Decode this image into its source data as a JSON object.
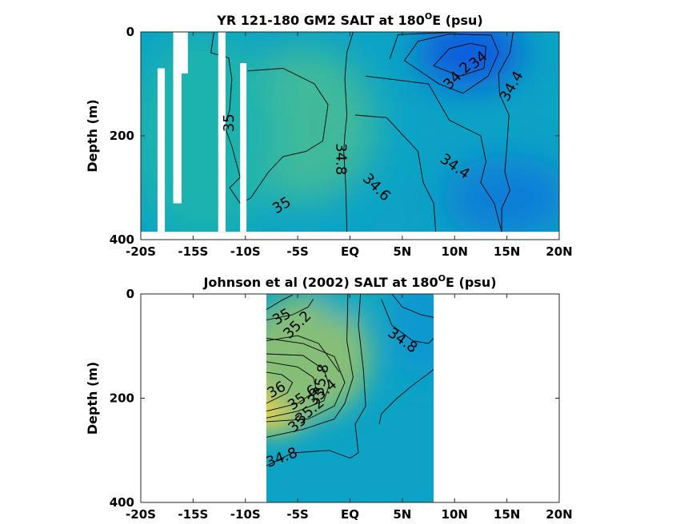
{
  "chart_data": [
    {
      "type": "contour",
      "title": "YR 121-180 GM2 SALT at 180",
      "title_sup": "O",
      "title_tail": "E (psu)",
      "ylabel": "Depth (m)",
      "xlim": [
        -20,
        20
      ],
      "ylim": [
        400,
        0
      ],
      "x_ticks": [
        -20,
        -15,
        -10,
        -5,
        0,
        5,
        10,
        15,
        20
      ],
      "x_tick_labels": [
        "-20S",
        "-15S",
        "-10S",
        "-5S",
        "EQ",
        "5N",
        "10N",
        "15N",
        "20N"
      ],
      "y_ticks": [
        0,
        200,
        400
      ],
      "y_tick_labels": [
        "0",
        "200",
        "400"
      ],
      "data_extent": {
        "x": [
          -20,
          20
        ],
        "depth": [
          0,
          385
        ]
      },
      "masked_columns": [
        {
          "x": [
            -18.4,
            -17.7
          ],
          "depth": [
            70,
            385
          ]
        },
        {
          "x": [
            -16.9,
            -16.1
          ],
          "depth": [
            0,
            330
          ]
        },
        {
          "x": [
            -16.1,
            -15.5
          ],
          "depth": [
            0,
            80
          ]
        },
        {
          "x": [
            -12.6,
            -11.9
          ],
          "depth": [
            0,
            385
          ]
        },
        {
          "x": [
            -10.5,
            -9.9
          ],
          "depth": [
            60,
            385
          ]
        }
      ],
      "salinity_blobs": [
        {
          "x": -4.5,
          "depth": 180,
          "value": 35.15,
          "rx": 7,
          "ry": 150
        },
        {
          "x": -14,
          "depth": 200,
          "value": 35.0,
          "rx": 7,
          "ry": 200
        },
        {
          "x": 11.5,
          "depth": 40,
          "value": 34.0,
          "rx": 5,
          "ry": 70
        },
        {
          "x": 15,
          "depth": 320,
          "value": 34.35,
          "rx": 6,
          "ry": 80
        }
      ],
      "contours": [
        {
          "level": "34",
          "points": [
            [
              8,
              65
            ],
            [
              9.5,
              32
            ],
            [
              11.5,
              22
            ],
            [
              13,
              28
            ],
            [
              12.8,
              70
            ],
            [
              10.5,
              85
            ],
            [
              8,
              65
            ]
          ]
        },
        {
          "level": "34.2",
          "points": [
            [
              5.2,
              55
            ],
            [
              6.5,
              18
            ],
            [
              9.5,
              4
            ],
            [
              13.5,
              6
            ],
            [
              14.2,
              40
            ],
            [
              13.2,
              85
            ],
            [
              10.8,
              118
            ],
            [
              8.5,
              100
            ],
            [
              5.2,
              55
            ]
          ]
        },
        {
          "level": "34.4",
          "points": [
            [
              3.8,
              52
            ],
            [
              4.6,
              5
            ],
            [
              10.5,
              0
            ]
          ]
        },
        {
          "level": "34.4",
          "points": [
            [
              15.6,
              0
            ],
            [
              15.3,
              40
            ],
            [
              14.2,
              80
            ],
            [
              14.3,
              120
            ],
            [
              15.2,
              160
            ],
            [
              15,
              220
            ],
            [
              14.8,
              270
            ],
            [
              15.3,
              305
            ],
            [
              14.5,
              340
            ],
            [
              14.5,
              385
            ]
          ]
        },
        {
          "level": "34.4",
          "points": [
            [
              1.5,
              85
            ],
            [
              7.5,
              100
            ],
            [
              9.5,
              170
            ],
            [
              12.5,
              200
            ],
            [
              13,
              250
            ],
            [
              12.5,
              290
            ],
            [
              13.8,
              330
            ],
            [
              14.5,
              385
            ]
          ]
        },
        {
          "level": "34.6",
          "points": [
            [
              0.5,
              160
            ],
            [
              3.5,
              165
            ],
            [
              6.5,
              230
            ],
            [
              7,
              290
            ],
            [
              8,
              330
            ],
            [
              8.2,
              385
            ]
          ]
        },
        {
          "level": "34.8",
          "points": [
            [
              0.3,
              0
            ],
            [
              -0.3,
              40
            ],
            [
              -0.5,
              90
            ],
            [
              -0.3,
              160
            ],
            [
              -0.5,
              200
            ],
            [
              -0.6,
              230
            ],
            [
              -0.4,
              300
            ],
            [
              -0.3,
              385
            ]
          ]
        },
        {
          "level": "35",
          "points": [
            [
              -13,
              0
            ],
            [
              -13.3,
              40
            ],
            [
              -11.6,
              50
            ],
            [
              -11.3,
              90
            ],
            [
              -11.5,
              150
            ],
            [
              -12,
              180
            ],
            [
              -11.3,
              220
            ],
            [
              -10.5,
              280
            ],
            [
              -11.5,
              300
            ],
            [
              -10.5,
              330
            ],
            [
              -9.5,
              320
            ],
            [
              -7.8,
              270
            ],
            [
              -6.4,
              240
            ],
            [
              -4.2,
              230
            ],
            [
              -2.6,
              210
            ],
            [
              -2.1,
              140
            ],
            [
              -3.4,
              100
            ],
            [
              -6.4,
              70
            ],
            [
              -9.8,
              75
            ]
          ]
        }
      ],
      "contour_labels": [
        {
          "text": "34",
          "x": 12.3,
          "depth": 55,
          "angle": -40
        },
        {
          "text": "34.2",
          "x": 10.3,
          "depth": 85,
          "angle": -45
        },
        {
          "text": "34.4",
          "x": 15.5,
          "depth": 105,
          "angle": -60
        },
        {
          "text": "34.4",
          "x": 10,
          "depth": 260,
          "angle": 35
        },
        {
          "text": "34.6",
          "x": 2.5,
          "depth": 300,
          "angle": 45
        },
        {
          "text": "34.8",
          "x": -0.9,
          "depth": 245,
          "angle": 90
        },
        {
          "text": "35",
          "x": -11.5,
          "depth": 175,
          "angle": -90
        },
        {
          "text": "35",
          "x": -6.5,
          "depth": 335,
          "angle": -30
        }
      ]
    },
    {
      "type": "contour",
      "title": "Johnson et al (2002) SALT at 180",
      "title_sup": "O",
      "title_tail": "E (psu)",
      "ylabel": "Depth (m)",
      "xlim": [
        -20,
        20
      ],
      "ylim": [
        400,
        0
      ],
      "x_ticks": [
        -20,
        -15,
        -10,
        -5,
        0,
        5,
        10,
        15,
        20
      ],
      "x_tick_labels": [
        "-20S",
        "-15S",
        "-10S",
        "-5S",
        "EQ",
        "5N",
        "10N",
        "15N",
        "20N"
      ],
      "y_ticks": [
        0,
        200,
        400
      ],
      "y_tick_labels": [
        "0",
        "200",
        "400"
      ],
      "data_extent": {
        "x": [
          -8,
          8
        ],
        "depth": [
          0,
          400
        ]
      },
      "masked_columns": [],
      "salinity_blobs": [
        {
          "x": -7.5,
          "depth": 175,
          "value": 36.1,
          "rx": 5,
          "ry": 90
        },
        {
          "x": -4,
          "depth": 120,
          "value": 35.45,
          "rx": 6,
          "ry": 120
        },
        {
          "x": 0,
          "depth": 10,
          "value": 34.85,
          "rx": 3,
          "ry": 40
        },
        {
          "x": 7,
          "depth": 60,
          "value": 34.6,
          "rx": 3,
          "ry": 100
        }
      ],
      "contours": [
        {
          "level": "35",
          "points": [
            [
              -8,
              30
            ],
            [
              -6.5,
              12
            ],
            [
              -5.5,
              2
            ]
          ]
        },
        {
          "level": "35.2",
          "points": [
            [
              -8,
              50
            ],
            [
              -5.5,
              40
            ],
            [
              -4,
              25
            ],
            [
              -3.5,
              10
            ]
          ]
        },
        {
          "level": "35.4",
          "points": [
            [
              -8,
              90
            ],
            [
              -5,
              80
            ],
            [
              -3,
              95
            ],
            [
              -1,
              150
            ]
          ]
        },
        {
          "level": "36",
          "points": [
            [
              -8,
              150
            ],
            [
              -6.5,
              155
            ],
            [
              -5.5,
              170
            ],
            [
              -6,
              190
            ],
            [
              -8,
              210
            ]
          ]
        },
        {
          "level": "35.8",
          "points": [
            [
              -8,
              130
            ],
            [
              -5,
              140
            ],
            [
              -3.5,
              160
            ],
            [
              -3.2,
              185
            ],
            [
              -5,
              210
            ],
            [
              -8,
              225
            ]
          ]
        },
        {
          "level": "35.6",
          "points": [
            [
              -8,
              115
            ],
            [
              -4.5,
              118
            ],
            [
              -2.5,
              145
            ],
            [
              -2,
              175
            ],
            [
              -2.5,
              205
            ],
            [
              -5,
              225
            ],
            [
              -8,
              238
            ]
          ]
        },
        {
          "level": "35.2",
          "points": [
            [
              -8,
              245
            ],
            [
              -4,
              240
            ],
            [
              -1.5,
              215
            ],
            [
              -0.5,
              170
            ],
            [
              -1.5,
              120
            ],
            [
              -4.5,
              95
            ],
            [
              -8,
              85
            ]
          ]
        },
        {
          "level": "35",
          "points": [
            [
              -8,
              275
            ],
            [
              -4.5,
              260
            ],
            [
              -1.5,
              240
            ],
            [
              -0.5,
              210
            ],
            [
              0.3,
              160
            ],
            [
              -0.3,
              90
            ],
            [
              -0.2,
              0
            ]
          ]
        },
        {
          "level": "34.8",
          "points": [
            [
              -8,
              330
            ],
            [
              -5.5,
              305
            ],
            [
              -2,
              300
            ],
            [
              0,
              315
            ],
            [
              0.8,
              305
            ],
            [
              0.5,
              250
            ],
            [
              1.5,
              215
            ],
            [
              1.3,
              150
            ],
            [
              0.8,
              60
            ],
            [
              1,
              0
            ]
          ]
        },
        {
          "level": "34.8",
          "points": [
            [
              3,
              10
            ],
            [
              4,
              60
            ],
            [
              6,
              90
            ],
            [
              7.5,
              95
            ],
            [
              8,
              85
            ]
          ]
        },
        {
          "level": "34.8",
          "points": [
            [
              8,
              145
            ],
            [
              6,
              175
            ],
            [
              4.5,
              200
            ],
            [
              3,
              230
            ],
            [
              2.8,
              250
            ]
          ]
        },
        {
          "level": "34.6",
          "points": [
            [
              4,
              0
            ],
            [
              5,
              25
            ],
            [
              6.8,
              40
            ],
            [
              8,
              45
            ]
          ]
        }
      ],
      "contour_labels": [
        {
          "text": "35",
          "x": -6.5,
          "depth": 45,
          "angle": -30
        },
        {
          "text": "35.2",
          "x": -5,
          "depth": 60,
          "angle": -45
        },
        {
          "text": "34.8",
          "x": 5,
          "depth": 90,
          "angle": 35
        },
        {
          "text": "36",
          "x": -7,
          "depth": 185,
          "angle": -30
        },
        {
          "text": "35.6",
          "x": -4.5,
          "depth": 200,
          "angle": -35
        },
        {
          "text": "35.4",
          "x": -2.6,
          "depth": 190,
          "angle": -40
        },
        {
          "text": "35.8",
          "x": -2.7,
          "depth": 165,
          "angle": -80
        },
        {
          "text": "35.2",
          "x": -3.8,
          "depth": 225,
          "angle": -40
        },
        {
          "text": "35",
          "x": -5,
          "depth": 250,
          "angle": -40
        },
        {
          "text": "34.8",
          "x": -6.5,
          "depth": 315,
          "angle": -20
        }
      ]
    }
  ]
}
